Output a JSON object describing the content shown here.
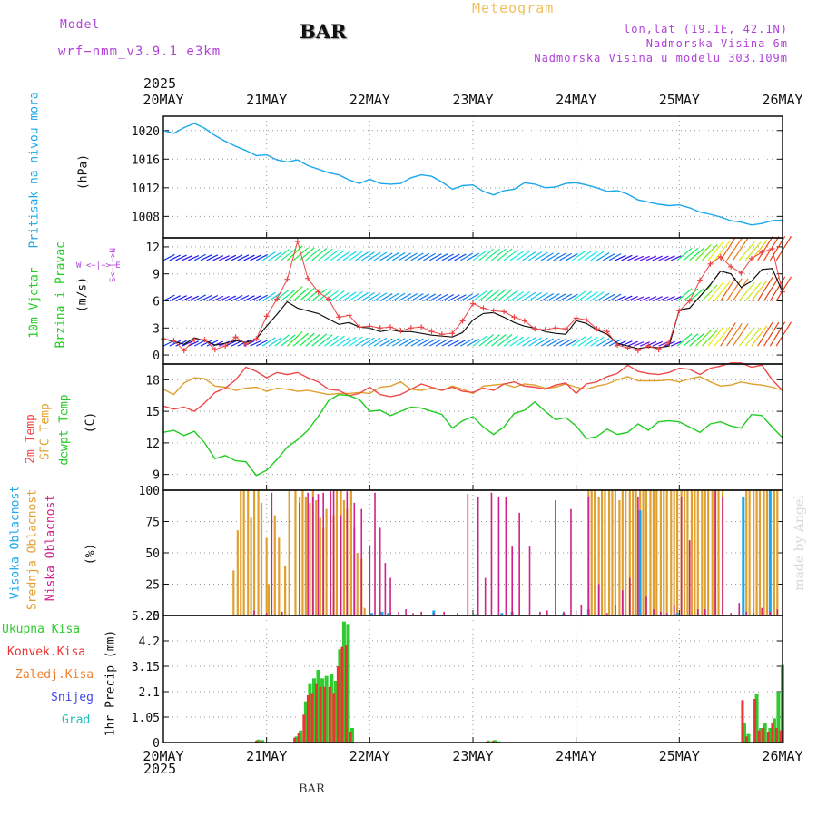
{
  "header": {
    "model_label": "Model",
    "model_name": "wrf−nmm_v3.9.1 e3km",
    "station": "BAR",
    "title": "Meteogram",
    "coords": "lon,lat (19.1E, 42.1N)",
    "elevation": "Nadmorska Visina 6m",
    "model_elevation": "Nadmorska Visina u modelu 303.109m",
    "footer_station": "BAR",
    "watermark": "made by Angel"
  },
  "colors": {
    "pressure": "#1aa7ec",
    "temp2m": "#f04848",
    "sfc": "#e0a030",
    "dew": "#22cc22",
    "high_cloud": "#1aa7ec",
    "mid_cloud": "#e0a030",
    "low_cloud": "#d0208a",
    "total_precip": "#2ecc2e",
    "conv_precip": "#ee3333",
    "frozen_precip": "#f08030",
    "snow": "#4444ee",
    "hail": "#22c0c0",
    "label_purple": "#b040d8",
    "title_gold": "#f0c060"
  },
  "chart_data": [
    {
      "type": "line",
      "name": "pressure",
      "ylabel_left": "Pritisak na nivou mora",
      "ylabel_unit": "(hPa)",
      "ylim": [
        1005,
        1022
      ],
      "yticks": [
        1008,
        1012,
        1016,
        1020
      ],
      "x_days": [
        0,
        0.1,
        0.2,
        0.3,
        0.4,
        0.5,
        0.6,
        0.7,
        0.8,
        0.9,
        1.0,
        1.1,
        1.2,
        1.3,
        1.4,
        1.5,
        1.6,
        1.7,
        1.8,
        1.9,
        2.0,
        2.1,
        2.2,
        2.3,
        2.4,
        2.5,
        2.6,
        2.7,
        2.8,
        2.9,
        3.0,
        3.1,
        3.2,
        3.3,
        3.4,
        3.5,
        3.6,
        3.7,
        3.8,
        3.9,
        4.0,
        4.1,
        4.2,
        4.3,
        4.4,
        4.5,
        4.6,
        4.7,
        4.8,
        4.9,
        5.0,
        5.1,
        5.2,
        5.3,
        5.4,
        5.5,
        5.6,
        5.7,
        5.8,
        5.9,
        6.0
      ],
      "values": [
        1020,
        1019.6,
        1020.4,
        1021,
        1020.3,
        1019.3,
        1018.5,
        1017.8,
        1017.2,
        1016.5,
        1016.6,
        1015.9,
        1015.6,
        1015.9,
        1015.1,
        1014.6,
        1014.1,
        1013.8,
        1013.1,
        1012.6,
        1013.2,
        1012.6,
        1012.5,
        1012.6,
        1013.4,
        1013.8,
        1013.6,
        1012.8,
        1011.8,
        1012.3,
        1012.4,
        1011.5,
        1011,
        1011.6,
        1011.8,
        1012.7,
        1012.5,
        1012,
        1012.1,
        1012.6,
        1012.7,
        1012.4,
        1012,
        1011.5,
        1011.6,
        1011.1,
        1010.3,
        1010,
        1009.7,
        1009.5,
        1009.6,
        1009.2,
        1008.6,
        1008.3,
        1007.9,
        1007.4,
        1007.2,
        1006.8,
        1007,
        1007.4,
        1007.5
      ]
    },
    {
      "type": "line",
      "name": "wind",
      "ylabel_left": "10m Vjetar",
      "ylabel_left2": "Brzina i Pravac",
      "ylabel_unit": "(m/s)",
      "compass": "W <−|−> E",
      "compass_v": "S<−|−>N",
      "ylim": [
        -1,
        13
      ],
      "yticks": [
        0,
        3,
        6,
        9,
        12
      ],
      "x_days": [
        0,
        0.1,
        0.2,
        0.3,
        0.4,
        0.5,
        0.6,
        0.7,
        0.8,
        0.9,
        1.0,
        1.1,
        1.2,
        1.3,
        1.4,
        1.5,
        1.6,
        1.7,
        1.8,
        1.9,
        2.0,
        2.1,
        2.2,
        2.3,
        2.4,
        2.5,
        2.6,
        2.7,
        2.8,
        2.9,
        3.0,
        3.1,
        3.2,
        3.3,
        3.4,
        3.5,
        3.6,
        3.7,
        3.8,
        3.9,
        4.0,
        4.1,
        4.2,
        4.3,
        4.4,
        4.5,
        4.6,
        4.7,
        4.8,
        4.9,
        5.0,
        5.1,
        5.2,
        5.3,
        5.4,
        5.5,
        5.6,
        5.7,
        5.8,
        5.9,
        6.0
      ],
      "speed": [
        1.8,
        1.5,
        1.2,
        1.9,
        1.6,
        1.1,
        1.3,
        1.6,
        1.4,
        1.8,
        3.2,
        4.5,
        5.9,
        5.2,
        4.9,
        4.6,
        4.0,
        3.4,
        3.6,
        3.1,
        3.0,
        2.6,
        2.8,
        2.6,
        2.6,
        2.4,
        2.2,
        2.1,
        2.0,
        2.5,
        3.9,
        4.6,
        4.7,
        4.2,
        3.6,
        3.2,
        3.0,
        2.6,
        2.4,
        2.3,
        3.8,
        3.5,
        2.8,
        2.3,
        1.3,
        1.0,
        0.7,
        0.9,
        0.8,
        1.0,
        5.0,
        5.2,
        6.5,
        7.8,
        9.3,
        9.0,
        7.5,
        8.2,
        9.5,
        9.6,
        7.0
      ],
      "gust": [
        1.8,
        1.6,
        0.5,
        1.7,
        1.7,
        0.6,
        1.0,
        2.0,
        1.2,
        1.8,
        4.3,
        6.2,
        8.4,
        12.6,
        8.5,
        7.0,
        6.2,
        4.2,
        4.4,
        3.1,
        3.2,
        3.0,
        3.1,
        2.7,
        3.0,
        3.1,
        2.6,
        2.3,
        2.4,
        3.8,
        5.7,
        5.2,
        4.9,
        4.8,
        4.2,
        3.8,
        2.9,
        2.8,
        3.0,
        2.9,
        4.1,
        3.9,
        2.9,
        2.6,
        1.1,
        0.8,
        0.5,
        1.0,
        0.6,
        1.4,
        4.9,
        6.0,
        8.3,
        10.1,
        10.9,
        9.8,
        9.1,
        10.7,
        11.4,
        11.8,
        7.0
      ]
    },
    {
      "type": "line",
      "name": "temperature",
      "ylabel_a": "2m Temp",
      "ylabel_b": "SFC Temp",
      "ylabel_c": "dewpt Temp",
      "ylabel_unit": "(C)",
      "ylim": [
        7.5,
        19.5
      ],
      "yticks": [
        9,
        12,
        15,
        18
      ],
      "x_days": [
        0,
        0.1,
        0.2,
        0.3,
        0.4,
        0.5,
        0.6,
        0.7,
        0.8,
        0.9,
        1.0,
        1.1,
        1.2,
        1.3,
        1.4,
        1.5,
        1.6,
        1.7,
        1.8,
        1.9,
        2.0,
        2.1,
        2.2,
        2.3,
        2.4,
        2.5,
        2.6,
        2.7,
        2.8,
        2.9,
        3.0,
        3.1,
        3.2,
        3.3,
        3.4,
        3.5,
        3.6,
        3.7,
        3.8,
        3.9,
        4.0,
        4.1,
        4.2,
        4.3,
        4.4,
        4.5,
        4.6,
        4.7,
        4.8,
        4.9,
        5.0,
        5.1,
        5.2,
        5.3,
        5.4,
        5.5,
        5.6,
        5.7,
        5.8,
        5.9,
        6.0
      ],
      "temp2m": [
        15.5,
        15.2,
        15.4,
        15.0,
        15.8,
        16.8,
        17.2,
        18.0,
        19.2,
        18.8,
        18.2,
        18.7,
        18.5,
        18.7,
        18.2,
        17.8,
        17.1,
        17.0,
        16.5,
        16.7,
        17.3,
        16.6,
        16.4,
        16.6,
        17.1,
        17.6,
        17.3,
        17.0,
        17.3,
        16.9,
        16.8,
        17.2,
        17.0,
        17.6,
        17.8,
        17.4,
        17.3,
        17.1,
        17.5,
        17.7,
        16.7,
        17.6,
        17.8,
        18.3,
        18.6,
        19.4,
        18.8,
        18.6,
        18.5,
        18.7,
        19.1,
        19.0,
        18.5,
        19.1,
        19.3,
        19.6,
        19.6,
        19.2,
        19.4,
        18.0,
        17.0
      ],
      "sfc": [
        17.1,
        16.6,
        17.7,
        18.2,
        18.1,
        17.4,
        17.3,
        17.0,
        17.2,
        17.3,
        16.9,
        17.2,
        17.1,
        16.9,
        17.0,
        16.8,
        16.6,
        16.7,
        16.7,
        16.8,
        16.7,
        17.3,
        17.4,
        17.8,
        17.1,
        17.0,
        17.2,
        17.0,
        17.4,
        17.1,
        16.7,
        17.4,
        17.5,
        17.6,
        17.3,
        17.6,
        17.5,
        17.2,
        17.3,
        17.6,
        17.3,
        17.1,
        17.4,
        17.6,
        18.0,
        18.3,
        17.9,
        17.9,
        17.9,
        18.0,
        17.8,
        18.1,
        18.3,
        17.8,
        17.4,
        17.5,
        17.8,
        17.6,
        17.5,
        17.3,
        17.0
      ],
      "dewpt": [
        13.0,
        13.2,
        12.7,
        13.1,
        12.0,
        10.5,
        10.8,
        10.3,
        10.2,
        8.9,
        9.4,
        10.4,
        11.6,
        12.3,
        13.2,
        14.5,
        16.0,
        16.6,
        16.5,
        16.1,
        15.0,
        15.1,
        14.6,
        15.0,
        15.4,
        15.3,
        15.0,
        14.7,
        13.4,
        14.1,
        14.5,
        13.5,
        12.8,
        13.5,
        14.8,
        15.1,
        15.9,
        15.0,
        14.2,
        14.4,
        13.6,
        12.4,
        12.6,
        13.3,
        12.8,
        13.0,
        13.8,
        13.2,
        14.0,
        14.1,
        14.0,
        13.5,
        13.0,
        13.8,
        14.0,
        13.6,
        13.4,
        14.7,
        14.6,
        13.5,
        12.5
      ]
    },
    {
      "type": "bar",
      "name": "cloud_cover",
      "ylabel_a": "Visoka Oblacnost",
      "ylabel_b": "Srednja Oblacnost",
      "ylabel_c": "Niska Oblacnost",
      "ylabel_unit": "(%)",
      "ylim": [
        0,
        100
      ],
      "yticks": [
        0,
        25,
        50,
        75,
        100
      ],
      "high_x": [
        2.02,
        2.12,
        2.18,
        2.62,
        3.02,
        3.28,
        3.38,
        3.88,
        4.12,
        4.62,
        4.98,
        5.62,
        5.88
      ],
      "high_y": [
        2,
        3,
        2,
        4,
        1,
        2,
        3,
        2,
        5,
        84,
        2,
        95,
        100
      ],
      "mid_x": [
        0.68,
        0.72,
        0.75,
        0.78,
        0.82,
        0.85,
        0.88,
        0.92,
        0.95,
        1.0,
        1.02,
        1.08,
        1.12,
        1.18,
        1.22,
        1.28,
        1.32,
        1.35,
        1.38,
        1.42,
        1.45,
        1.48,
        1.52,
        1.55,
        1.58,
        1.62,
        1.65,
        1.68,
        1.72,
        1.75,
        1.78,
        1.82,
        1.85,
        1.88,
        1.92,
        1.95,
        4.12,
        4.15,
        4.18,
        4.22,
        4.25,
        4.28,
        4.32,
        4.35,
        4.38,
        4.42,
        4.45,
        4.48,
        4.52,
        4.55,
        4.58,
        4.62,
        4.65,
        4.68,
        4.72,
        4.75,
        4.78,
        4.82,
        4.85,
        4.88,
        4.92,
        4.95,
        4.98,
        5.02,
        5.05,
        5.08,
        5.12,
        5.15,
        5.18,
        5.22,
        5.25,
        5.28,
        5.32,
        5.35,
        5.38,
        5.42,
        5.62,
        5.65,
        5.68,
        5.72,
        5.75,
        5.78,
        5.82,
        5.85,
        5.88,
        5.92,
        5.95
      ],
      "mid_y": [
        36,
        68,
        100,
        100,
        100,
        78,
        100,
        100,
        90,
        62,
        25,
        80,
        62,
        40,
        100,
        100,
        95,
        100,
        95,
        90,
        100,
        92,
        78,
        70,
        85,
        98,
        80,
        100,
        100,
        92,
        85,
        100,
        70,
        50,
        45,
        6,
        100,
        100,
        100,
        95,
        100,
        100,
        100,
        100,
        100,
        92,
        100,
        100,
        100,
        100,
        100,
        100,
        100,
        100,
        100,
        100,
        100,
        100,
        100,
        100,
        100,
        100,
        100,
        100,
        100,
        100,
        100,
        100,
        100,
        100,
        100,
        100,
        100,
        100,
        100,
        100,
        68,
        100,
        100,
        100,
        100,
        100,
        100,
        100,
        100,
        100,
        100
      ],
      "low_x": [
        0.88,
        1.0,
        1.05,
        1.15,
        1.32,
        1.4,
        1.45,
        1.5,
        1.55,
        1.62,
        1.65,
        1.72,
        1.78,
        1.85,
        1.92,
        2.0,
        2.05,
        2.1,
        2.15,
        2.2,
        2.28,
        2.35,
        2.42,
        2.5,
        2.62,
        2.72,
        2.85,
        2.95,
        3.05,
        3.12,
        3.18,
        3.25,
        3.32,
        3.38,
        3.45,
        3.55,
        3.65,
        3.72,
        3.8,
        3.88,
        3.95,
        4.05,
        4.12,
        4.22,
        4.3,
        4.38,
        4.45,
        4.52,
        4.6,
        4.68,
        4.75,
        4.82,
        4.88,
        4.95,
        5.02,
        5.1,
        5.18,
        5.25,
        5.35,
        5.42,
        5.5,
        5.58,
        5.65,
        5.72,
        5.8,
        5.88,
        5.95
      ],
      "low_y": [
        4,
        2,
        98,
        3,
        90,
        98,
        95,
        97,
        98,
        100,
        100,
        80,
        99,
        90,
        85,
        55,
        98,
        70,
        42,
        30,
        3,
        5,
        2,
        3,
        2,
        3,
        2,
        97,
        95,
        30,
        98,
        95,
        95,
        55,
        82,
        55,
        3,
        4,
        92,
        3,
        85,
        8,
        95,
        25,
        2,
        8,
        20,
        30,
        95,
        15,
        5,
        3,
        2,
        8,
        95,
        60,
        5,
        5,
        100,
        95,
        2,
        10,
        3,
        2,
        6,
        3,
        5
      ]
    },
    {
      "type": "bar",
      "name": "precipitation",
      "legend": [
        "Ukupna Kisa",
        "Konvek.Kisa",
        "Zaledj.Kisa",
        "Snijeg",
        "Grad"
      ],
      "ylabel_unit": "1hr Precip (mm)",
      "ylim": [
        0,
        5.25
      ],
      "yticks": [
        0,
        1.05,
        2.1,
        3.15,
        4.2,
        5.25
      ],
      "ytick_labels": [
        "0",
        "1.05",
        "2.1",
        "3.15",
        "4.2",
        "5.25"
      ],
      "x_days": [
        0.92,
        0.96,
        1.29,
        1.33,
        1.38,
        1.42,
        1.46,
        1.5,
        1.54,
        1.58,
        1.63,
        1.67,
        1.71,
        1.75,
        1.79,
        1.83,
        3.15,
        3.21,
        3.25,
        5.63,
        5.67,
        5.75,
        5.79,
        5.83,
        5.88,
        5.92,
        5.96,
        6.0
      ],
      "total": [
        0.12,
        0.1,
        0.25,
        0.5,
        1.7,
        2.45,
        2.65,
        3.0,
        2.65,
        2.75,
        2.85,
        2.55,
        3.85,
        5.0,
        4.9,
        0.6,
        0.08,
        0.1,
        0.05,
        0.8,
        0.35,
        2.0,
        0.6,
        0.8,
        0.6,
        1.0,
        2.1,
        3.2
      ],
      "convective": [
        0.08,
        0.06,
        0.2,
        0.38,
        1.15,
        1.95,
        2.05,
        2.45,
        2.3,
        2.3,
        2.3,
        2.05,
        3.15,
        3.95,
        4.05,
        0.45,
        0.04,
        0.06,
        0.03,
        1.75,
        0.25,
        1.8,
        0.5,
        0.6,
        0.45,
        0.8,
        0.6,
        0.5
      ]
    }
  ],
  "x_axis": {
    "year_top": "2025",
    "year_bottom": "2025",
    "day_labels": [
      "20MAY",
      "21MAY",
      "22MAY",
      "23MAY",
      "24MAY",
      "25MAY",
      "26MAY"
    ]
  }
}
